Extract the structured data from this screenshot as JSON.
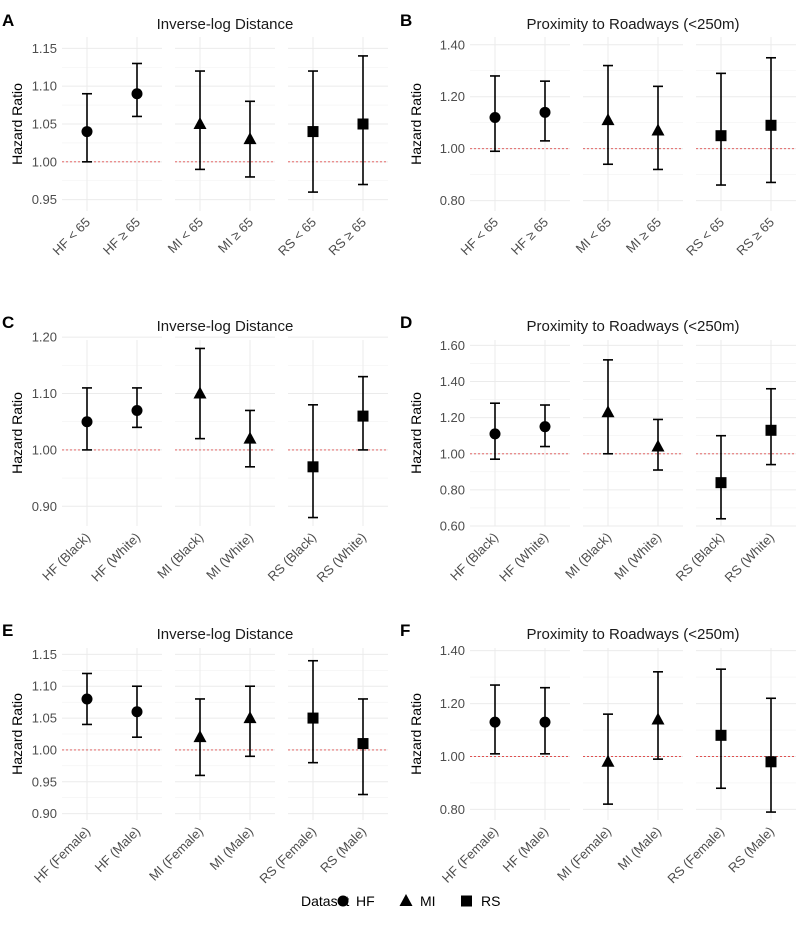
{
  "legend": {
    "title": "Dataset",
    "items": [
      {
        "label": "HF",
        "shape": "circle"
      },
      {
        "label": "MI",
        "shape": "triangle"
      },
      {
        "label": "RS",
        "shape": "square"
      }
    ]
  },
  "colors": {
    "point": "#000000",
    "reference_line": "#e05050",
    "grid": "#ebebeb"
  },
  "chart_data": [
    {
      "panel": "A",
      "type": "scatter",
      "title": "Inverse-log Distance",
      "ylabel": "Hazard Ratio",
      "ylim": [
        0.935,
        1.165
      ],
      "yticks": [
        0.95,
        1.0,
        1.05,
        1.1,
        1.15
      ],
      "ytick_labels": [
        "0.95",
        "1.00",
        "1.05",
        "1.10",
        "1.15"
      ],
      "reference": 1.0,
      "groups": [
        {
          "dataset": "HF",
          "shape": "circle",
          "points": [
            {
              "label": "HF < 65",
              "estimate": 1.04,
              "lower": 1.0,
              "upper": 1.09
            },
            {
              "label": "HF ≥ 65",
              "estimate": 1.09,
              "lower": 1.06,
              "upper": 1.13
            }
          ]
        },
        {
          "dataset": "MI",
          "shape": "triangle",
          "points": [
            {
              "label": "MI < 65",
              "estimate": 1.05,
              "lower": 0.99,
              "upper": 1.12
            },
            {
              "label": "MI ≥ 65",
              "estimate": 1.03,
              "lower": 0.98,
              "upper": 1.08
            }
          ]
        },
        {
          "dataset": "RS",
          "shape": "square",
          "points": [
            {
              "label": "RS < 65",
              "estimate": 1.04,
              "lower": 0.96,
              "upper": 1.12
            },
            {
              "label": "RS ≥ 65",
              "estimate": 1.05,
              "lower": 0.97,
              "upper": 1.14
            }
          ]
        }
      ]
    },
    {
      "panel": "B",
      "type": "scatter",
      "title": "Proximity to Roadways (<250m)",
      "ylabel": "Hazard Ratio",
      "ylim": [
        0.76,
        1.43
      ],
      "yticks": [
        0.8,
        1.0,
        1.2,
        1.4
      ],
      "ytick_labels": [
        "0.80",
        "1.00",
        "1.20",
        "1.40"
      ],
      "reference": 1.0,
      "groups": [
        {
          "dataset": "HF",
          "shape": "circle",
          "points": [
            {
              "label": "HF < 65",
              "estimate": 1.12,
              "lower": 0.99,
              "upper": 1.28
            },
            {
              "label": "HF ≥ 65",
              "estimate": 1.14,
              "lower": 1.03,
              "upper": 1.26
            }
          ]
        },
        {
          "dataset": "MI",
          "shape": "triangle",
          "points": [
            {
              "label": "MI < 65",
              "estimate": 1.11,
              "lower": 0.94,
              "upper": 1.32
            },
            {
              "label": "MI ≥ 65",
              "estimate": 1.07,
              "lower": 0.92,
              "upper": 1.24
            }
          ]
        },
        {
          "dataset": "RS",
          "shape": "square",
          "points": [
            {
              "label": "RS < 65",
              "estimate": 1.05,
              "lower": 0.86,
              "upper": 1.29
            },
            {
              "label": "RS ≥ 65",
              "estimate": 1.09,
              "lower": 0.87,
              "upper": 1.35
            }
          ]
        }
      ]
    },
    {
      "panel": "C",
      "type": "scatter",
      "title": "Inverse-log Distance",
      "ylabel": "Hazard Ratio",
      "ylim": [
        0.865,
        1.195
      ],
      "yticks": [
        0.9,
        1.0,
        1.1,
        1.2
      ],
      "ytick_labels": [
        "0.90",
        "1.00",
        "1.10",
        "1.20"
      ],
      "reference": 1.0,
      "groups": [
        {
          "dataset": "HF",
          "shape": "circle",
          "points": [
            {
              "label": "HF (Black)",
              "estimate": 1.05,
              "lower": 1.0,
              "upper": 1.11
            },
            {
              "label": "HF (White)",
              "estimate": 1.07,
              "lower": 1.04,
              "upper": 1.11
            }
          ]
        },
        {
          "dataset": "MI",
          "shape": "triangle",
          "points": [
            {
              "label": "MI (Black)",
              "estimate": 1.1,
              "lower": 1.02,
              "upper": 1.18
            },
            {
              "label": "MI (White)",
              "estimate": 1.02,
              "lower": 0.97,
              "upper": 1.07
            }
          ]
        },
        {
          "dataset": "RS",
          "shape": "square",
          "points": [
            {
              "label": "RS (Black)",
              "estimate": 0.97,
              "lower": 0.88,
              "upper": 1.08
            },
            {
              "label": "RS (White)",
              "estimate": 1.06,
              "lower": 1.0,
              "upper": 1.13
            }
          ]
        }
      ]
    },
    {
      "panel": "D",
      "type": "scatter",
      "title": "Proximity to Roadways (<250m)",
      "ylabel": "Hazard Ratio",
      "ylim": [
        0.6,
        1.63
      ],
      "yticks": [
        0.6,
        0.8,
        1.0,
        1.2,
        1.4,
        1.6
      ],
      "ytick_labels": [
        "0.60",
        "0.80",
        "1.00",
        "1.20",
        "1.40",
        "1.60"
      ],
      "reference": 1.0,
      "groups": [
        {
          "dataset": "HF",
          "shape": "circle",
          "points": [
            {
              "label": "HF (Black)",
              "estimate": 1.11,
              "lower": 0.97,
              "upper": 1.28
            },
            {
              "label": "HF (White)",
              "estimate": 1.15,
              "lower": 1.04,
              "upper": 1.27
            }
          ]
        },
        {
          "dataset": "MI",
          "shape": "triangle",
          "points": [
            {
              "label": "MI (Black)",
              "estimate": 1.23,
              "lower": 1.0,
              "upper": 1.52
            },
            {
              "label": "MI (White)",
              "estimate": 1.04,
              "lower": 0.91,
              "upper": 1.19
            }
          ]
        },
        {
          "dataset": "RS",
          "shape": "square",
          "points": [
            {
              "label": "RS (Black)",
              "estimate": 0.84,
              "lower": 0.64,
              "upper": 1.1
            },
            {
              "label": "RS (White)",
              "estimate": 1.13,
              "lower": 0.94,
              "upper": 1.36
            }
          ]
        }
      ]
    },
    {
      "panel": "E",
      "type": "scatter",
      "title": "Inverse-log Distance",
      "ylabel": "Hazard Ratio",
      "ylim": [
        0.89,
        1.16
      ],
      "yticks": [
        0.9,
        0.95,
        1.0,
        1.05,
        1.1,
        1.15
      ],
      "ytick_labels": [
        "0.90",
        "0.95",
        "1.00",
        "1.05",
        "1.10",
        "1.15"
      ],
      "reference": 1.0,
      "groups": [
        {
          "dataset": "HF",
          "shape": "circle",
          "points": [
            {
              "label": "HF (Female)",
              "estimate": 1.08,
              "lower": 1.04,
              "upper": 1.12
            },
            {
              "label": "HF (Male)",
              "estimate": 1.06,
              "lower": 1.02,
              "upper": 1.1
            }
          ]
        },
        {
          "dataset": "MI",
          "shape": "triangle",
          "points": [
            {
              "label": "MI (Female)",
              "estimate": 1.02,
              "lower": 0.96,
              "upper": 1.08
            },
            {
              "label": "MI (Male)",
              "estimate": 1.05,
              "lower": 0.99,
              "upper": 1.1
            }
          ]
        },
        {
          "dataset": "RS",
          "shape": "square",
          "points": [
            {
              "label": "RS (Female)",
              "estimate": 1.05,
              "lower": 0.98,
              "upper": 1.14
            },
            {
              "label": "RS (Male)",
              "estimate": 1.01,
              "lower": 0.93,
              "upper": 1.08
            }
          ]
        }
      ]
    },
    {
      "panel": "F",
      "type": "scatter",
      "title": "Proximity to Roadways (<250m)",
      "ylabel": "Hazard Ratio",
      "ylim": [
        0.76,
        1.41
      ],
      "yticks": [
        0.8,
        1.0,
        1.2,
        1.4
      ],
      "ytick_labels": [
        "0.80",
        "1.00",
        "1.20",
        "1.40"
      ],
      "reference": 1.0,
      "groups": [
        {
          "dataset": "HF",
          "shape": "circle",
          "points": [
            {
              "label": "HF (Female)",
              "estimate": 1.13,
              "lower": 1.01,
              "upper": 1.27
            },
            {
              "label": "HF (Male)",
              "estimate": 1.13,
              "lower": 1.01,
              "upper": 1.26
            }
          ]
        },
        {
          "dataset": "MI",
          "shape": "triangle",
          "points": [
            {
              "label": "MI (Female)",
              "estimate": 0.98,
              "lower": 0.82,
              "upper": 1.16
            },
            {
              "label": "MI (Male)",
              "estimate": 1.14,
              "lower": 0.99,
              "upper": 1.32
            }
          ]
        },
        {
          "dataset": "RS",
          "shape": "square",
          "points": [
            {
              "label": "RS (Female)",
              "estimate": 1.08,
              "lower": 0.88,
              "upper": 1.33
            },
            {
              "label": "RS (Male)",
              "estimate": 0.98,
              "lower": 0.79,
              "upper": 1.22
            }
          ]
        }
      ]
    }
  ]
}
